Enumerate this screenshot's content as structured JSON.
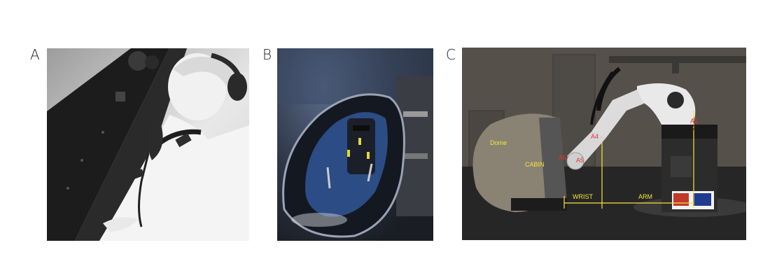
{
  "panels": {
    "a": {
      "letter": "A"
    },
    "b": {
      "letter": "B"
    },
    "c": {
      "letter": "C",
      "labels": {
        "dome": "Dome",
        "cabin": "CABIN",
        "wrist": "WRIST",
        "arm": "ARM",
        "a1": "A1",
        "a4": "A4",
        "a5": "A5",
        "a6": "A6"
      }
    }
  },
  "colors": {
    "annotation_yellow": "#f5e63a",
    "axis_red": "#e83030"
  }
}
